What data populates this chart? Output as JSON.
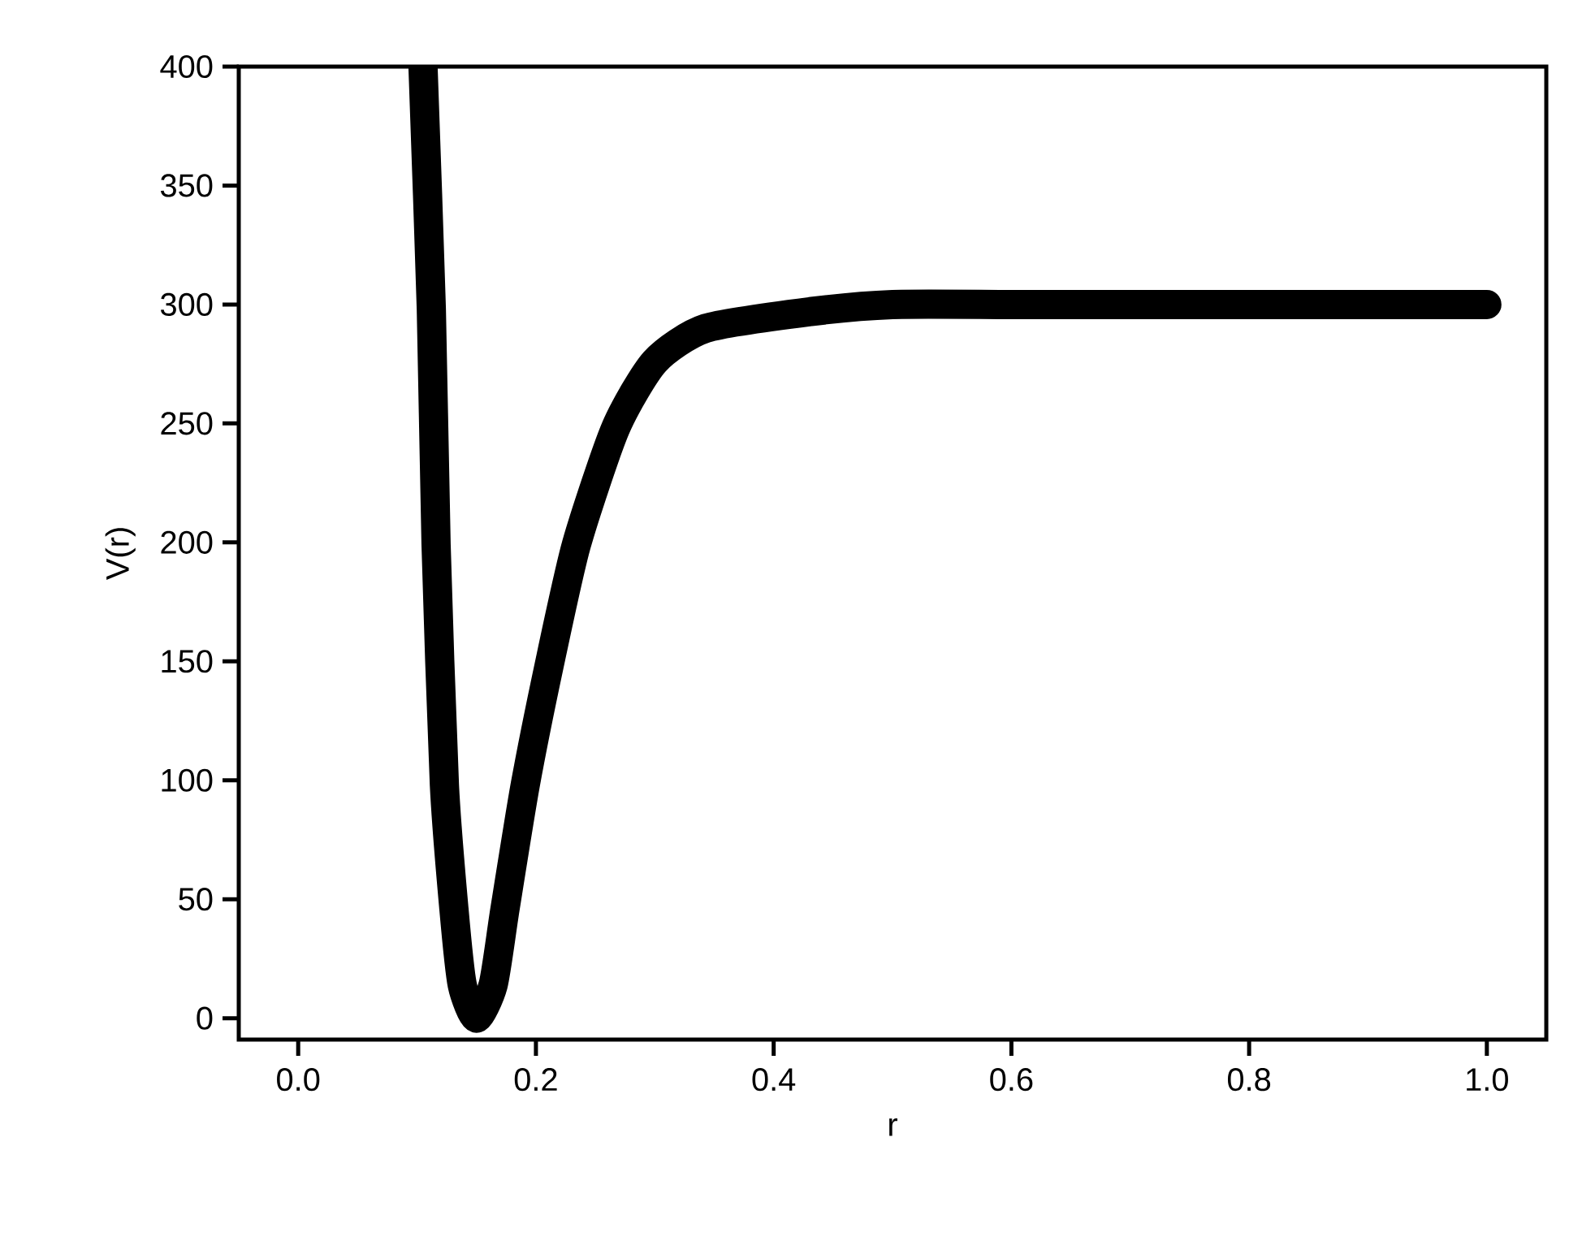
{
  "chart_data": {
    "type": "line",
    "xlabel": "r",
    "ylabel": "V(r)",
    "x": [
      0.105,
      0.112,
      0.116,
      0.123,
      0.131,
      0.138,
      0.15,
      0.164,
      0.174,
      0.191,
      0.211,
      0.234,
      0.267,
      0.3,
      0.343,
      0.431,
      0.5,
      0.6,
      0.7,
      0.8,
      0.9,
      1.0
    ],
    "series": [
      {
        "color": "#000000",
        "values": [
          400,
          298,
          199,
          98,
          46,
          14,
          0,
          14,
          46,
          98,
          148,
          199,
          248,
          276,
          290,
          297,
          300,
          300,
          300,
          300,
          300,
          300
        ]
      }
    ],
    "xlim": [
      -0.05,
      1.05
    ],
    "ylim": [
      -9,
      400
    ],
    "xticks": [
      {
        "value": 0,
        "label": "0.0"
      },
      0.2,
      0.4,
      0.6,
      0.8,
      {
        "value": 1,
        "label": "1.0"
      }
    ],
    "yticks": [
      0,
      50,
      100,
      150,
      200,
      250,
      300,
      350,
      400
    ]
  }
}
